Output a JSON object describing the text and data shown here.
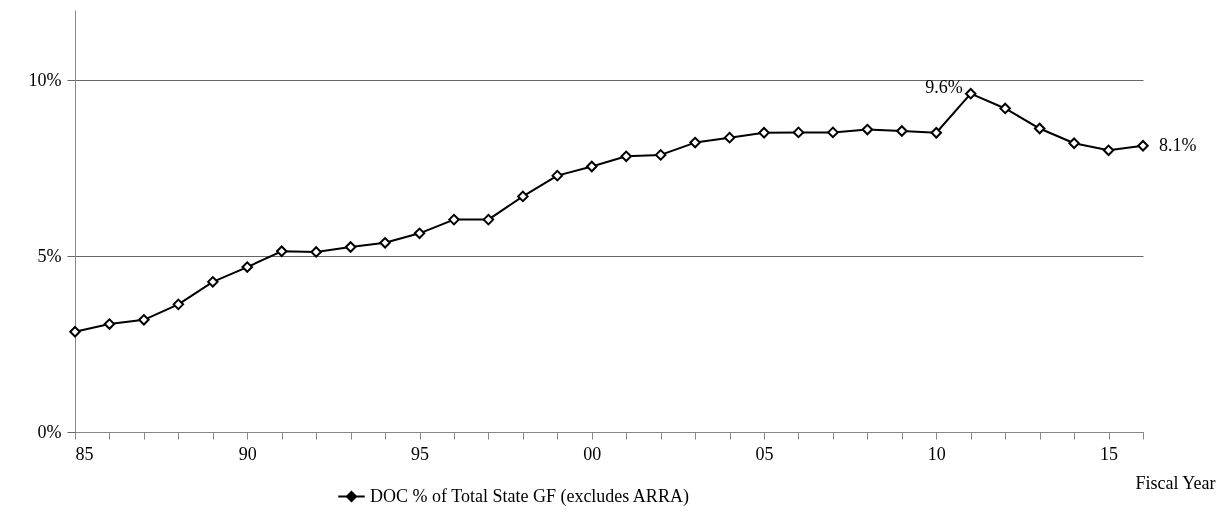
{
  "chart_data": {
    "type": "line",
    "xlabel": "Fiscal Year",
    "x": [
      1985,
      1986,
      1987,
      1988,
      1989,
      1990,
      1991,
      1992,
      1993,
      1994,
      1995,
      1996,
      1997,
      1998,
      1999,
      2000,
      2001,
      2002,
      2003,
      2004,
      2005,
      2006,
      2007,
      2008,
      2009,
      2010,
      2011,
      2012,
      2013,
      2014,
      2015,
      2016
    ],
    "series": [
      {
        "name": "DOC % of Total State GF (excludes ARRA)",
        "color": "#000000",
        "values": [
          2.85,
          3.07,
          3.19,
          3.63,
          4.27,
          4.69,
          5.14,
          5.12,
          5.26,
          5.38,
          5.65,
          6.04,
          6.04,
          6.7,
          7.29,
          7.55,
          7.84,
          7.88,
          8.23,
          8.37,
          8.51,
          8.52,
          8.52,
          8.6,
          8.56,
          8.51,
          9.62,
          9.2,
          8.63,
          8.21,
          8.01,
          8.14
        ],
        "value_labels": [
          null,
          null,
          null,
          null,
          null,
          null,
          null,
          null,
          null,
          null,
          null,
          null,
          null,
          null,
          null,
          null,
          null,
          null,
          null,
          null,
          null,
          null,
          null,
          null,
          null,
          null,
          "9.6%",
          null,
          null,
          null,
          null,
          "8.1%"
        ]
      }
    ],
    "xlim": [
      1985,
      2016
    ],
    "xticks": [
      {
        "value": 1985,
        "label": "85"
      },
      {
        "value": 1986,
        "label": null
      },
      {
        "value": 1987,
        "label": null
      },
      {
        "value": 1988,
        "label": null
      },
      {
        "value": 1989,
        "label": null
      },
      {
        "value": 1990,
        "label": "90"
      },
      {
        "value": 1991,
        "label": null
      },
      {
        "value": 1992,
        "label": null
      },
      {
        "value": 1993,
        "label": null
      },
      {
        "value": 1994,
        "label": null
      },
      {
        "value": 1995,
        "label": "95"
      },
      {
        "value": 1996,
        "label": null
      },
      {
        "value": 1997,
        "label": null
      },
      {
        "value": 1998,
        "label": null
      },
      {
        "value": 1999,
        "label": null
      },
      {
        "value": 2000,
        "label": "00"
      },
      {
        "value": 2001,
        "label": null
      },
      {
        "value": 2002,
        "label": null
      },
      {
        "value": 2003,
        "label": null
      },
      {
        "value": 2004,
        "label": null
      },
      {
        "value": 2005,
        "label": "05"
      },
      {
        "value": 2006,
        "label": null
      },
      {
        "value": 2007,
        "label": null
      },
      {
        "value": 2008,
        "label": null
      },
      {
        "value": 2009,
        "label": null
      },
      {
        "value": 2010,
        "label": "10"
      },
      {
        "value": 2011,
        "label": null
      },
      {
        "value": 2012,
        "label": null
      },
      {
        "value": 2013,
        "label": null
      },
      {
        "value": 2014,
        "label": null
      },
      {
        "value": 2015,
        "label": "15"
      },
      {
        "value": 2016,
        "label": null
      }
    ],
    "ylim": [
      0,
      12
    ],
    "yticks": [
      {
        "value": 0,
        "label": "0%"
      },
      {
        "value": 5,
        "label": "5%"
      },
      {
        "value": 10,
        "label": "10%"
      }
    ],
    "grid": "y",
    "legend": "bottom",
    "marker": "diamond",
    "line_style": "solid"
  }
}
